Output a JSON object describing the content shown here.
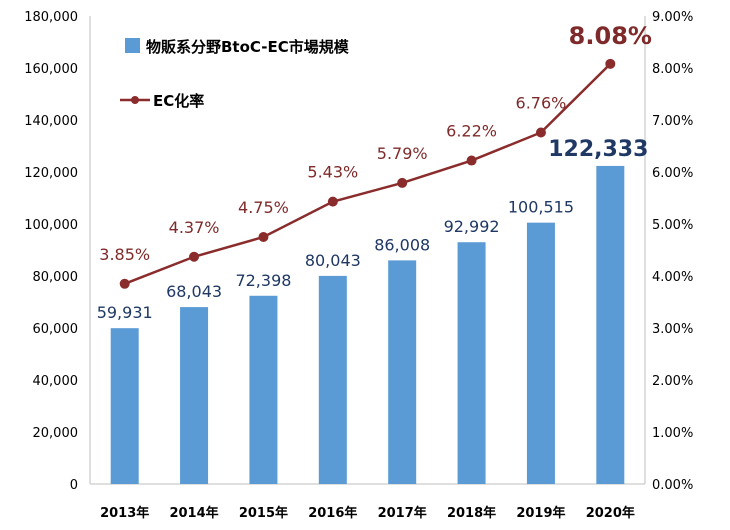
{
  "chart_data": {
    "type": "bar",
    "categories": [
      "2013年",
      "2014年",
      "2015年",
      "2016年",
      "2017年",
      "2018年",
      "2019年",
      "2020年"
    ],
    "series": [
      {
        "name": "物販系分野BtoC-EC市場規模",
        "type": "bar",
        "axis": "left",
        "values": [
          59931,
          68043,
          72398,
          80043,
          86008,
          92992,
          100515,
          122333
        ],
        "labels": [
          "59,931",
          "68,043",
          "72,398",
          "80,043",
          "86,008",
          "92,992",
          "100,515",
          "122,333"
        ],
        "color": "#5b9bd5"
      },
      {
        "name": "EC化率",
        "type": "line",
        "axis": "right",
        "values": [
          3.85,
          4.37,
          4.75,
          5.43,
          5.79,
          6.22,
          6.76,
          8.08
        ],
        "labels": [
          "3.85%",
          "4.37%",
          "4.75%",
          "5.43%",
          "5.79%",
          "6.22%",
          "6.76%",
          "8.08%"
        ],
        "color": "#8b2c2c"
      }
    ],
    "y_left": {
      "lim": [
        0,
        180000
      ],
      "ticks": [
        "0",
        "20,000",
        "40,000",
        "60,000",
        "80,000",
        "100,000",
        "120,000",
        "140,000",
        "160,000",
        "180,000"
      ]
    },
    "y_right": {
      "lim": [
        0,
        9
      ],
      "ticks": [
        "0.00%",
        "1.00%",
        "2.00%",
        "3.00%",
        "4.00%",
        "5.00%",
        "6.00%",
        "7.00%",
        "8.00%",
        "9.00%"
      ]
    },
    "grid": false,
    "legend": "top-left"
  }
}
